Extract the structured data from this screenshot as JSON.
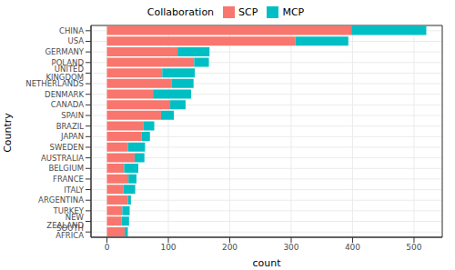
{
  "chart_data": {
    "type": "bar",
    "orientation": "horizontal",
    "stacked": true,
    "grid": true,
    "legend": "top",
    "legend_title": "Collaboration",
    "x_label": "count",
    "y_label": "Country",
    "categories": [
      "CHINA",
      "USA",
      "GERMANY",
      "POLAND",
      "UNITED KINGDOM",
      "NETHERLANDS",
      "DENMARK",
      "CANADA",
      "SPAIN",
      "BRAZIL",
      "JAPAN",
      "SWEDEN",
      "AUSTRALIA",
      "BELGIUM",
      "FRANCE",
      "ITALY",
      "ARGENTINA",
      "TURKEY",
      "NEW ZEALAND",
      "SOUTH AFRICA"
    ],
    "series": [
      {
        "name": "SCP",
        "color": "#F8766D",
        "values": [
          398,
          307,
          115,
          142,
          90,
          105,
          75,
          103,
          88,
          59,
          56,
          34,
          45,
          28,
          35,
          27,
          34,
          25,
          24,
          29
        ]
      },
      {
        "name": "MCP",
        "color": "#00BFC4",
        "values": [
          122,
          86,
          52,
          24,
          53,
          36,
          62,
          25,
          21,
          18,
          14,
          28,
          16,
          23,
          13,
          19,
          5,
          12,
          12,
          5
        ]
      }
    ],
    "xlim": [
      -26,
      546
    ],
    "xticks": [
      0,
      100,
      200,
      300,
      400,
      500
    ]
  }
}
